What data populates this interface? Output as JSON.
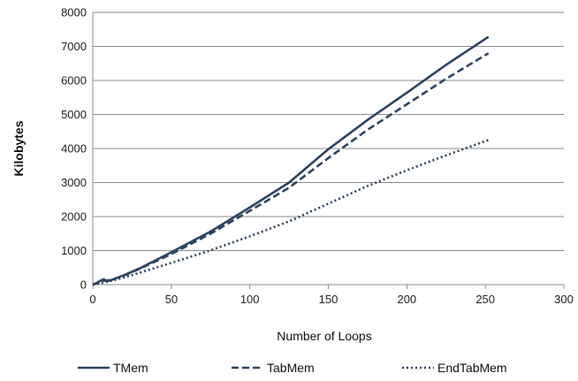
{
  "chart_data": {
    "type": "line",
    "title": "",
    "xlabel": "Number of Loops",
    "ylabel": "Kilobytes",
    "xlim": [
      0,
      300
    ],
    "ylim": [
      0,
      8000
    ],
    "xticks": [
      0,
      50,
      100,
      150,
      200,
      250,
      300
    ],
    "yticks": [
      0,
      1000,
      2000,
      3000,
      4000,
      5000,
      6000,
      7000,
      8000
    ],
    "grid": "horizontal",
    "legend_position": "bottom",
    "series": [
      {
        "name": "TMem",
        "style": "solid",
        "color": "#2e4460",
        "points": [
          [
            0,
            0
          ],
          [
            3,
            60
          ],
          [
            5,
            120
          ],
          [
            7,
            160
          ],
          [
            9,
            100
          ],
          [
            12,
            140
          ],
          [
            20,
            280
          ],
          [
            30,
            480
          ],
          [
            50,
            950
          ],
          [
            75,
            1560
          ],
          [
            100,
            2270
          ],
          [
            125,
            3000
          ],
          [
            150,
            3980
          ],
          [
            175,
            4840
          ],
          [
            200,
            5640
          ],
          [
            225,
            6460
          ],
          [
            252,
            7280
          ]
        ]
      },
      {
        "name": "TabMem",
        "style": "dashed",
        "color": "#2e4460",
        "points": [
          [
            0,
            0
          ],
          [
            5,
            90
          ],
          [
            8,
            120
          ],
          [
            12,
            140
          ],
          [
            20,
            270
          ],
          [
            30,
            470
          ],
          [
            50,
            900
          ],
          [
            75,
            1500
          ],
          [
            100,
            2170
          ],
          [
            125,
            2850
          ],
          [
            150,
            3720
          ],
          [
            175,
            4550
          ],
          [
            200,
            5300
          ],
          [
            225,
            6050
          ],
          [
            252,
            6800
          ]
        ]
      },
      {
        "name": "EndTabMem",
        "style": "dotted",
        "color": "#2e4460",
        "points": [
          [
            0,
            0
          ],
          [
            10,
            90
          ],
          [
            20,
            210
          ],
          [
            30,
            350
          ],
          [
            50,
            640
          ],
          [
            75,
            1010
          ],
          [
            100,
            1420
          ],
          [
            125,
            1860
          ],
          [
            150,
            2380
          ],
          [
            175,
            2900
          ],
          [
            200,
            3360
          ],
          [
            225,
            3800
          ],
          [
            252,
            4250
          ]
        ]
      }
    ]
  }
}
